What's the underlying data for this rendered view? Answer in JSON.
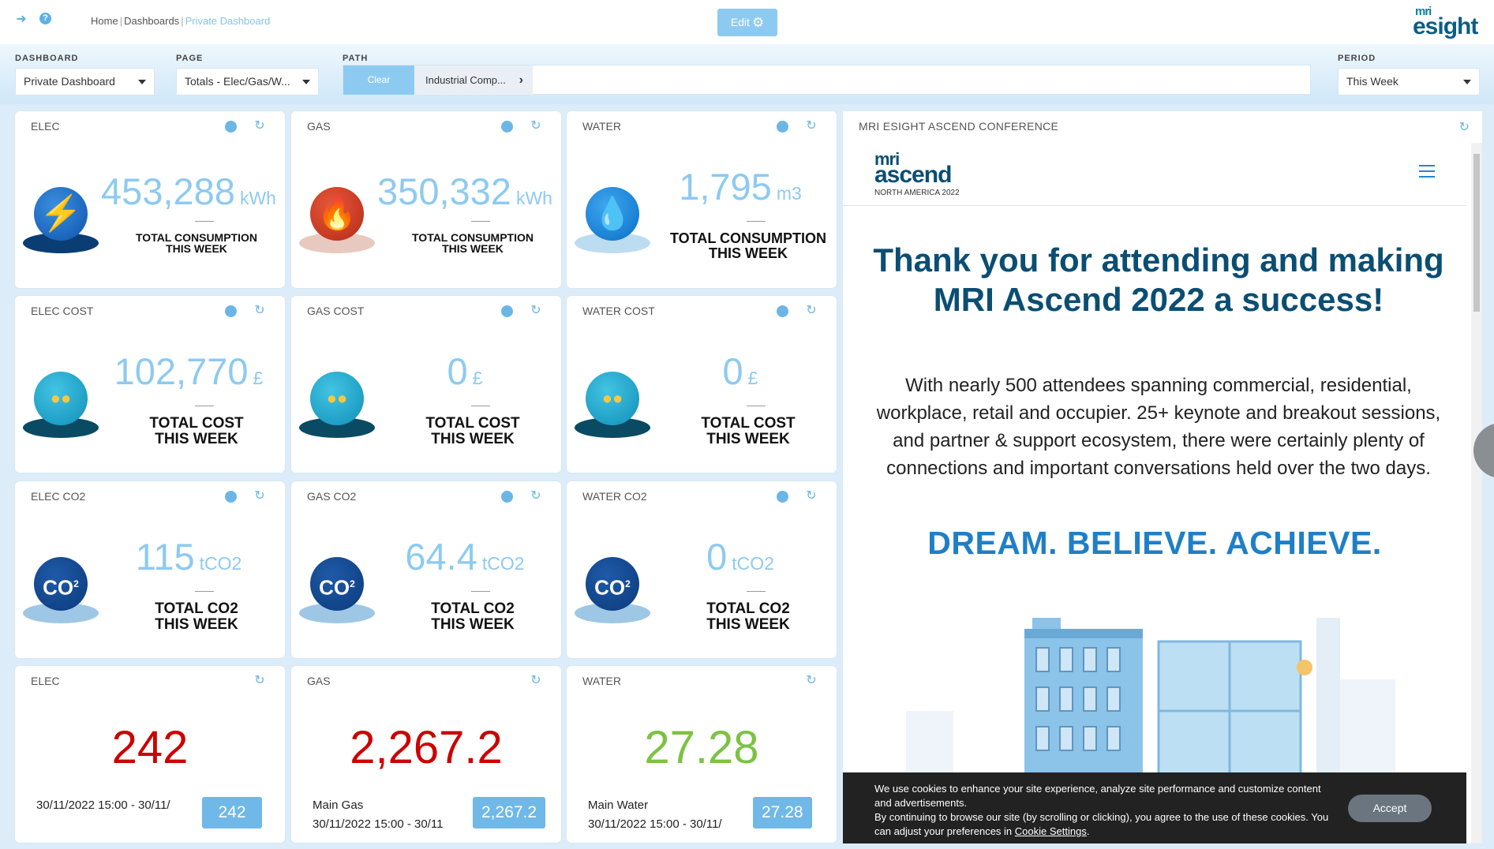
{
  "topbar": {
    "breadcrumbs": [
      "Home",
      "Dashboards",
      "Private Dashboard"
    ],
    "edit_label": "Edit",
    "logo_top": "mri",
    "logo_main": "esight"
  },
  "filters": {
    "dashboard_label": "DASHBOARD",
    "dashboard_value": "Private Dashboard",
    "page_label": "PAGE",
    "page_value": "Totals - Elec/Gas/W...",
    "path_label": "PATH",
    "path_clear": "Clear",
    "path_crumb": "Industrial Comp...",
    "period_label": "PERIOD",
    "period_value": "This Week"
  },
  "cards": {
    "elec": {
      "title": "ELEC",
      "value": "453,288",
      "unit": "kWh",
      "label1": "TOTAL CONSUMPTION",
      "label2": "THIS WEEK"
    },
    "gas": {
      "title": "GAS",
      "value": "350,332",
      "unit": "kWh",
      "label1": "TOTAL CONSUMPTION",
      "label2": "THIS WEEK"
    },
    "water": {
      "title": "WATER",
      "value": "1,795",
      "unit": "m3",
      "label1": "TOTAL CONSUMPTION",
      "label2": "THIS WEEK"
    },
    "elec_cost": {
      "title": "ELEC COST",
      "value": "102,770",
      "unit": "£",
      "label1": "TOTAL COST",
      "label2": "THIS WEEK"
    },
    "gas_cost": {
      "title": "GAS COST",
      "value": "0",
      "unit": "£",
      "label1": "TOTAL COST",
      "label2": "THIS WEEK"
    },
    "water_cost": {
      "title": "WATER COST",
      "value": "0",
      "unit": "£",
      "label1": "TOTAL COST",
      "label2": "THIS WEEK"
    },
    "elec_co2": {
      "title": "ELEC CO2",
      "value": "115",
      "unit": "tCO2",
      "label1": "TOTAL CO2",
      "label2": "THIS WEEK"
    },
    "gas_co2": {
      "title": "GAS CO2",
      "value": "64.4",
      "unit": "tCO2",
      "label1": "TOTAL CO2",
      "label2": "THIS WEEK"
    },
    "water_co2": {
      "title": "WATER CO2",
      "value": "0",
      "unit": "tCO2",
      "label1": "TOTAL CO2",
      "label2": "THIS WEEK"
    }
  },
  "meters": {
    "elec": {
      "title": "ELEC",
      "value": "242",
      "name": "",
      "range": "30/11/2022 15:00 - 30/11/",
      "badge": "242",
      "color": "#cc0000"
    },
    "gas": {
      "title": "GAS",
      "value": "2,267.2",
      "name": "Main Gas",
      "range": "30/11/2022 15:00 - 30/11",
      "badge": "2,267.2",
      "color": "#cc0000"
    },
    "water": {
      "title": "WATER",
      "value": "27.28",
      "name": "Main Water",
      "range": "30/11/2022 15:00 - 30/11/",
      "badge": "27.28",
      "color": "#7cc242"
    }
  },
  "co2_icon_text": "CO",
  "conference": {
    "title": "MRI ESIGHT ASCEND CONFERENCE",
    "logo_mri": "mri",
    "logo_word": "ascend",
    "logo_sub": "NORTH AMERICA 2022",
    "heading": "Thank you for attending and making MRI Ascend 2022 a success!",
    "paragraph": "With nearly 500 attendees spanning commercial, residential, workplace, retail and occupier. 25+ keynote and breakout sessions, and partner & support ecosystem, there were certainly plenty of connections and important conversations held over the two days.",
    "slogan": "DREAM. BELIEVE. ACHIEVE.",
    "cookie_line1": "We use cookies to enhance your site experience, analyze site performance and customize content and advertisements.",
    "cookie_line2": "By continuing to browse our site (by scrolling or clicking), you agree to the use of these cookies. You can adjust your preferences in",
    "cookie_link": "Cookie Settings",
    "cookie_end": ".",
    "accept": "Accept"
  },
  "colors": {
    "accent": "#8dcaf1",
    "metric": "#8dcaf1",
    "red": "#cc0000",
    "green": "#7cc242",
    "navy": "#0b4e73"
  }
}
